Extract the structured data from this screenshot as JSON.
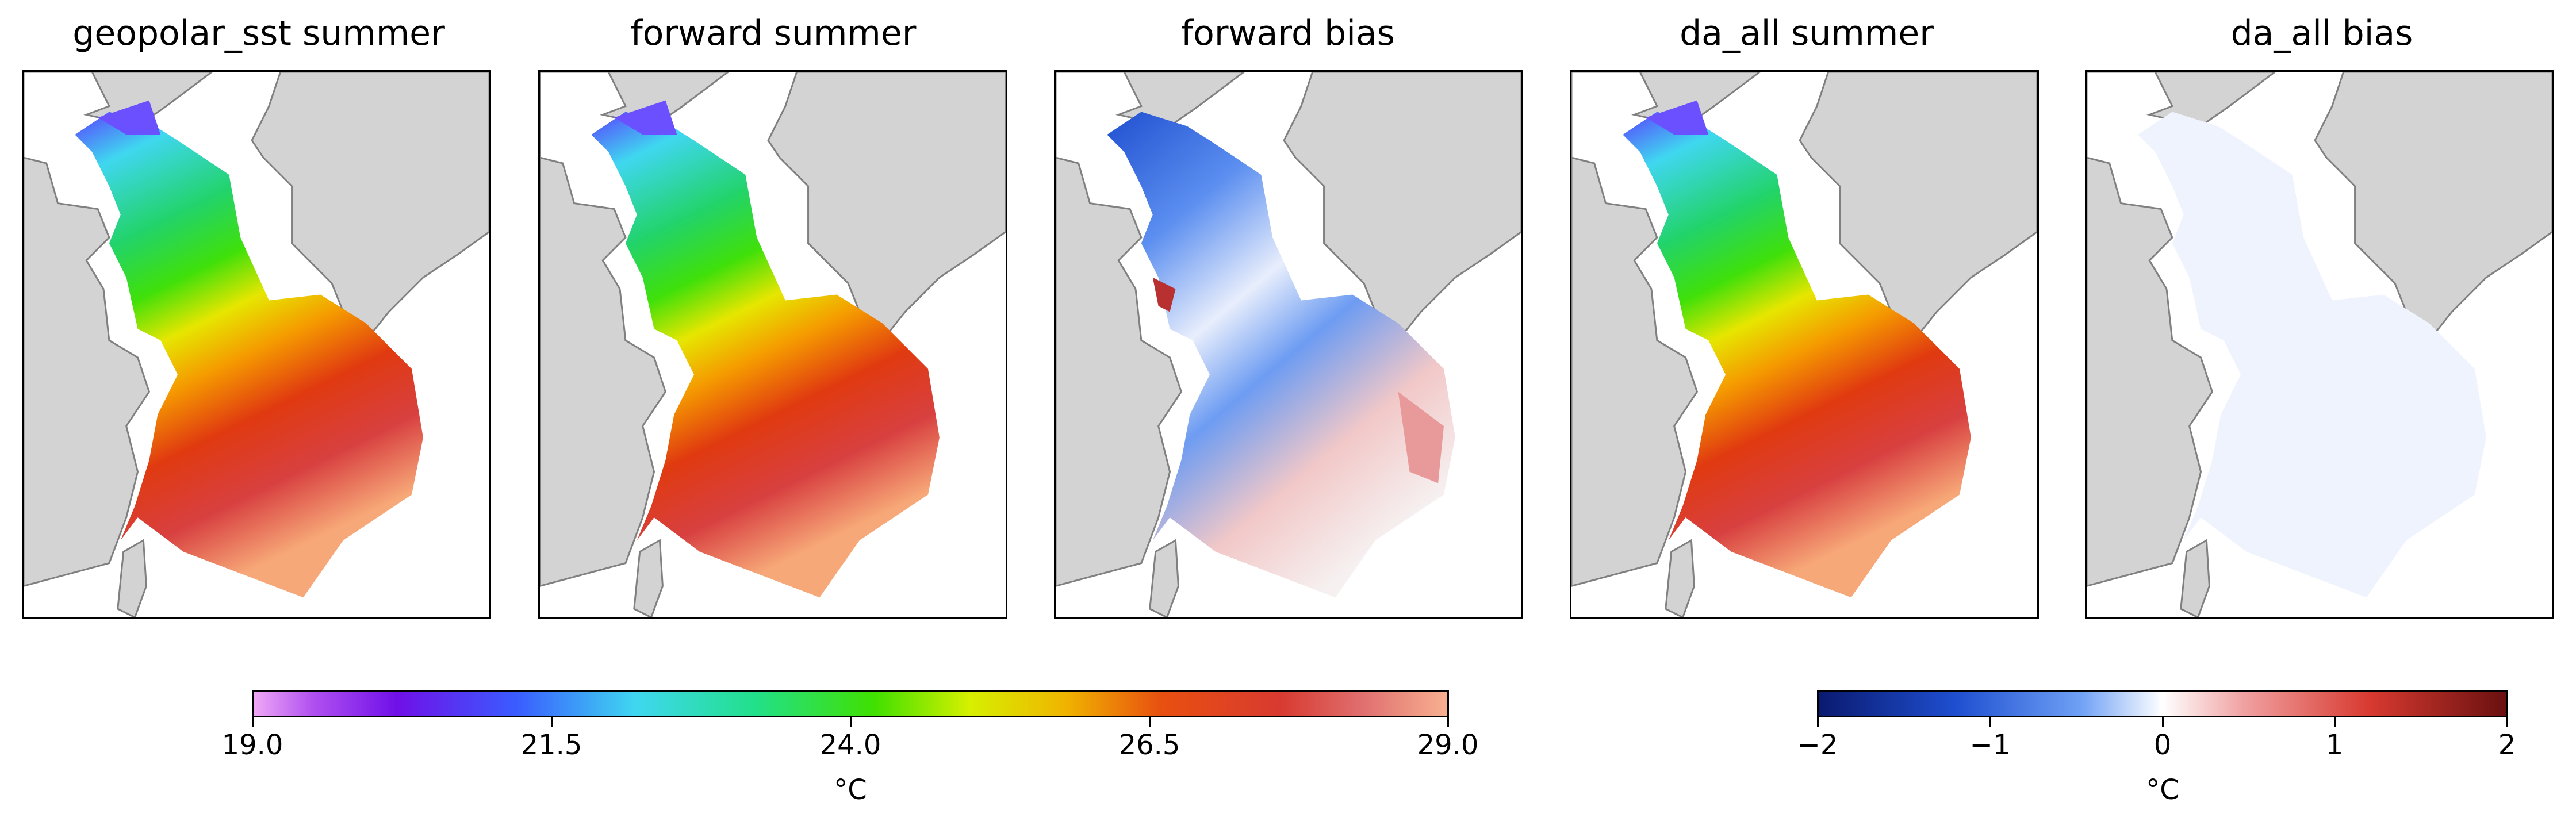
{
  "panels": [
    {
      "title": "geopolar_sst summer",
      "kind": "sst"
    },
    {
      "title": "forward summer",
      "kind": "sst"
    },
    {
      "title": "forward bias",
      "kind": "bias_strong"
    },
    {
      "title": "da_all summer",
      "kind": "sst"
    },
    {
      "title": "da_all bias",
      "kind": "bias_weak"
    }
  ],
  "colors": {
    "land": "#d3d3d3",
    "coast": "#808080"
  },
  "colorbars": {
    "sst": {
      "ticks": [
        "19.0",
        "21.5",
        "24.0",
        "26.5",
        "29.0"
      ],
      "unit": "°C",
      "range": [
        19.0,
        29.0
      ]
    },
    "bias": {
      "ticks": [
        "−2",
        "−1",
        "0",
        "1",
        "2"
      ],
      "unit": "°C",
      "range": [
        -2,
        2
      ]
    }
  }
}
